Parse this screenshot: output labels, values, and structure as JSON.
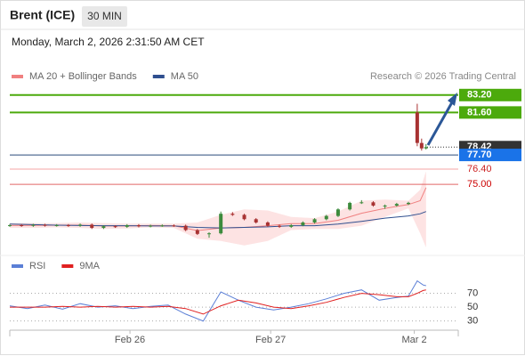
{
  "header": {
    "title": "Brent (ICE)",
    "interval": "30 MIN",
    "timestamp": "Monday, March 2, 2026 2:31:50 AM CET"
  },
  "chart_data": [
    {
      "type": "candlestick",
      "annotation": "Research © 2026 Trading Central",
      "xlim": [
        0,
        153
      ],
      "ylim": [
        68.8,
        84.0
      ],
      "xticks": [
        {
          "value": 41,
          "label": "Feb 26"
        },
        {
          "value": 89,
          "label": "Feb 27"
        },
        {
          "value": 138,
          "label": "Mar 2"
        }
      ],
      "candles": {
        "up_color": "#3d8b3d",
        "down_color": "#a83232",
        "x": [
          0,
          4,
          8,
          12,
          16,
          20,
          24,
          28,
          32,
          36,
          40,
          44,
          48,
          52,
          56,
          60,
          64,
          68,
          72,
          76,
          80,
          84,
          88,
          92,
          96,
          100,
          104,
          108,
          112,
          116,
          120,
          124,
          128,
          132,
          136,
          139,
          140.5,
          142
        ],
        "open": [
          71.2,
          71.25,
          71.2,
          71.28,
          71.22,
          71.25,
          71.2,
          71.3,
          71.0,
          71.15,
          71.1,
          71.25,
          71.15,
          71.2,
          71.22,
          71.2,
          70.8,
          70.45,
          70.5,
          72.3,
          72.2,
          71.8,
          71.5,
          71.2,
          71.1,
          71.25,
          71.5,
          71.8,
          72.1,
          72.7,
          73.3,
          73.35,
          73.05,
          73.05,
          73.2,
          81.6,
          78.8,
          78.3
        ],
        "high": [
          71.35,
          71.35,
          71.38,
          71.38,
          71.35,
          71.35,
          71.4,
          71.4,
          71.25,
          71.25,
          71.35,
          71.35,
          71.3,
          71.32,
          71.32,
          71.3,
          70.9,
          70.6,
          72.5,
          72.45,
          72.3,
          71.9,
          71.6,
          71.3,
          71.35,
          71.6,
          71.9,
          72.2,
          72.8,
          73.4,
          73.55,
          73.45,
          73.15,
          73.3,
          73.4,
          82.4,
          79.2,
          78.7
        ],
        "low": [
          71.1,
          71.1,
          71.1,
          71.12,
          71.12,
          71.1,
          71.1,
          70.9,
          70.9,
          71.0,
          71.0,
          71.05,
          71.05,
          71.1,
          71.1,
          70.7,
          70.35,
          70.1,
          70.4,
          72.1,
          71.7,
          71.4,
          71.1,
          71.0,
          71.0,
          71.15,
          71.4,
          71.7,
          72.0,
          72.6,
          73.2,
          72.95,
          72.75,
          72.95,
          73.1,
          78.5,
          78.1,
          78.2
        ],
        "close": [
          71.25,
          71.2,
          71.28,
          71.22,
          71.25,
          71.2,
          71.3,
          71.0,
          71.15,
          71.1,
          71.25,
          71.15,
          71.2,
          71.22,
          71.2,
          70.8,
          70.45,
          70.5,
          72.3,
          72.2,
          71.8,
          71.5,
          71.2,
          71.1,
          71.25,
          71.5,
          71.8,
          72.1,
          72.7,
          73.3,
          73.35,
          73.05,
          73.05,
          73.2,
          73.3,
          78.8,
          78.3,
          78.42
        ]
      },
      "indicator_x": [
        0,
        8,
        16,
        24,
        32,
        40,
        48,
        56,
        64,
        72,
        80,
        88,
        96,
        104,
        112,
        120,
        128,
        136,
        140,
        142
      ],
      "series": [
        {
          "name": "MA 20 + Bollinger Bands",
          "color": "#f08080",
          "band_color": "#fde3e3",
          "values": [
            71.22,
            71.23,
            71.25,
            71.25,
            71.18,
            71.18,
            71.22,
            71.2,
            70.75,
            71.0,
            71.05,
            71.2,
            71.4,
            71.4,
            71.7,
            72.35,
            72.8,
            73.15,
            73.5,
            74.7
          ],
          "upper": [
            71.45,
            71.45,
            71.45,
            71.5,
            71.45,
            71.4,
            71.4,
            71.4,
            71.5,
            72.2,
            72.7,
            72.6,
            72.0,
            71.9,
            72.5,
            73.5,
            73.6,
            73.5,
            74.5,
            76.2
          ],
          "lower": [
            71.0,
            71.0,
            71.05,
            71.0,
            70.9,
            70.95,
            71.05,
            71.0,
            70.0,
            69.8,
            69.4,
            69.8,
            70.8,
            70.9,
            70.9,
            71.2,
            72.0,
            72.8,
            70.5,
            69.2
          ]
        },
        {
          "name": "MA 50",
          "color": "#2f4f8f",
          "values": [
            71.35,
            71.3,
            71.25,
            71.22,
            71.2,
            71.2,
            71.18,
            71.18,
            71.05,
            71.0,
            71.05,
            71.1,
            71.2,
            71.2,
            71.35,
            71.6,
            71.9,
            72.1,
            72.3,
            72.5
          ]
        }
      ],
      "levels": [
        {
          "value": 83.2,
          "label": "83.20",
          "color": "#4caa0c",
          "style": "box"
        },
        {
          "value": 81.6,
          "label": "81.60",
          "color": "#4caa0c",
          "style": "box"
        },
        {
          "value": 78.42,
          "color": "#333333",
          "style": "dotted"
        },
        {
          "value": 77.7,
          "label": "77.70",
          "color": "#1a73e8",
          "line_color": "#2a4a7a",
          "style": "box"
        },
        {
          "value": 76.4,
          "label": "76.40",
          "color": "#f4a6a6",
          "text_color": "#cc2222",
          "style": "text"
        },
        {
          "value": 75,
          "label": "75.00",
          "color": "#e06666",
          "text_color": "#cc0000",
          "style": "text"
        }
      ]
    },
    {
      "type": "line",
      "xlim": [
        0,
        153
      ],
      "ylim": [
        18,
        108
      ],
      "yticks": [
        30,
        50,
        70
      ],
      "grid": "dotted",
      "x": [
        0,
        6,
        12,
        18,
        24,
        30,
        36,
        42,
        48,
        54,
        60,
        66,
        72,
        78,
        84,
        90,
        96,
        102,
        108,
        114,
        120,
        126,
        132,
        136,
        139,
        141,
        142
      ],
      "series": [
        {
          "name": "RSI",
          "color": "#5b7fd6",
          "values": [
            52,
            48,
            53,
            47,
            55,
            50,
            52,
            48,
            51,
            53,
            40,
            30,
            72,
            60,
            50,
            46,
            50,
            55,
            62,
            70,
            75,
            60,
            64,
            66,
            88,
            82,
            81
          ]
        },
        {
          "name": "9MA",
          "color": "#e02020",
          "values": [
            50,
            50,
            50,
            51,
            50,
            51,
            50,
            51,
            50,
            51,
            48,
            40,
            52,
            60,
            56,
            50,
            48,
            52,
            57,
            64,
            70,
            68,
            65,
            65,
            70,
            74,
            75
          ]
        }
      ]
    }
  ]
}
